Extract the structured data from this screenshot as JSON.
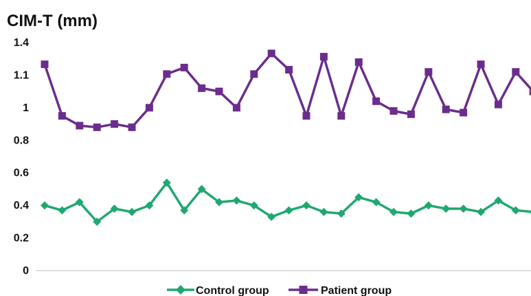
{
  "chart_data": {
    "type": "line",
    "title": "CIM-T (mm)",
    "xlabel": "",
    "ylabel": "",
    "yticks": [
      "0",
      "0.2",
      "0.4",
      "0.6",
      "0.8",
      "1",
      "1.1",
      "1.4"
    ],
    "x": [
      1,
      2,
      3,
      4,
      5,
      6,
      7,
      8,
      9,
      10,
      11,
      12,
      13,
      14,
      15,
      16,
      17,
      18,
      19,
      20,
      21,
      22,
      23,
      24,
      25,
      26,
      27,
      28,
      29,
      30
    ],
    "grid": false,
    "legend_position": "bottom",
    "series": [
      {
        "name": "Control group",
        "color": "#1fa870",
        "marker": "diamond",
        "values": [
          0.4,
          0.37,
          0.42,
          0.3,
          0.38,
          0.36,
          0.4,
          0.54,
          0.37,
          0.5,
          0.42,
          0.43,
          0.4,
          0.33,
          0.37,
          0.4,
          0.36,
          0.35,
          0.45,
          0.42,
          0.36,
          0.35,
          0.4,
          0.38,
          0.38,
          0.36,
          0.43,
          0.37,
          0.36,
          0.36
        ]
      },
      {
        "name": "Patient group",
        "color": "#6b2d8c",
        "marker": "square",
        "values": [
          1.2,
          0.95,
          0.89,
          0.88,
          0.9,
          0.88,
          1.0,
          1.11,
          1.17,
          1.06,
          1.05,
          1.0,
          1.11,
          1.3,
          1.15,
          0.95,
          1.27,
          0.95,
          1.22,
          1.02,
          0.98,
          0.96,
          1.13,
          0.99,
          0.97,
          1.2,
          1.01,
          1.13,
          1.05,
          1.05
        ]
      }
    ]
  }
}
